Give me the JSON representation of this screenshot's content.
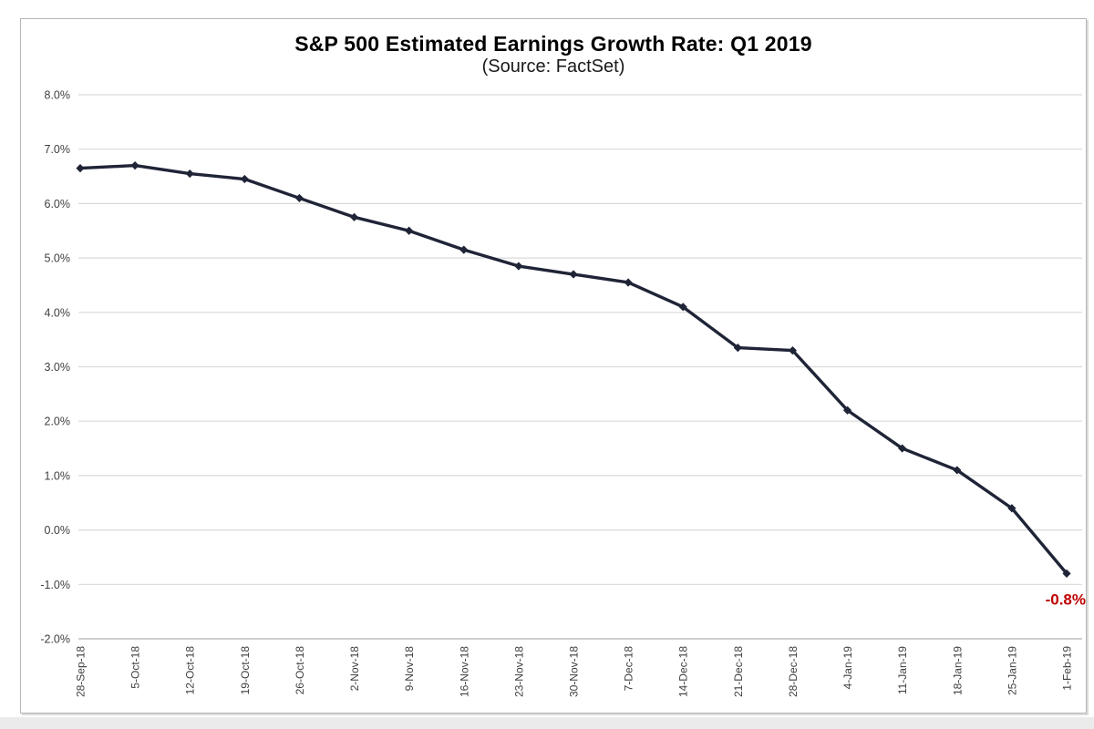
{
  "chart_data": {
    "type": "line",
    "title": "S&P 500 Estimated Earnings Growth Rate: Q1 2019",
    "subtitle": "(Source: FactSet)",
    "series_name": "Estimated earnings growth rate",
    "categories": [
      "28-Sep-18",
      "5-Oct-18",
      "12-Oct-18",
      "19-Oct-18",
      "26-Oct-18",
      "2-Nov-18",
      "9-Nov-18",
      "16-Nov-18",
      "23-Nov-18",
      "30-Nov-18",
      "7-Dec-18",
      "14-Dec-18",
      "21-Dec-18",
      "28-Dec-18",
      "4-Jan-19",
      "11-Jan-19",
      "18-Jan-19",
      "25-Jan-19",
      "1-Feb-19"
    ],
    "values": [
      6.65,
      6.7,
      6.55,
      6.45,
      6.1,
      5.75,
      5.5,
      5.15,
      4.85,
      4.7,
      4.55,
      4.1,
      3.35,
      3.3,
      2.2,
      1.5,
      1.1,
      0.4,
      -0.8
    ],
    "ylim": [
      -2.0,
      8.0
    ],
    "yticks": [
      {
        "value": 8,
        "label": "8.0%"
      },
      {
        "value": 7,
        "label": "7.0%"
      },
      {
        "value": 6,
        "label": "6.0%"
      },
      {
        "value": 5,
        "label": "5.0%"
      },
      {
        "value": 4,
        "label": "4.0%"
      },
      {
        "value": 3,
        "label": "3.0%"
      },
      {
        "value": 2,
        "label": "2.0%"
      },
      {
        "value": 1,
        "label": "1.0%"
      },
      {
        "value": 0,
        "label": "0.0%"
      },
      {
        "value": -1,
        "label": "-1.0%"
      },
      {
        "value": -2,
        "label": "-2.0%"
      }
    ],
    "grid": true,
    "legend": "none",
    "marker": "diamond",
    "annotation": {
      "text": "-0.8%",
      "attach": "last-point",
      "color": "#C00000"
    },
    "colors": {
      "line": "#1F2437",
      "marker": "#1F2437",
      "grid": "#D9D9D9",
      "axis": "#BFBFBF",
      "tick_text": "#3F3F3F",
      "title": "#000000",
      "subtitle": "#1A1A1A",
      "annotation": "#C00000"
    }
  }
}
